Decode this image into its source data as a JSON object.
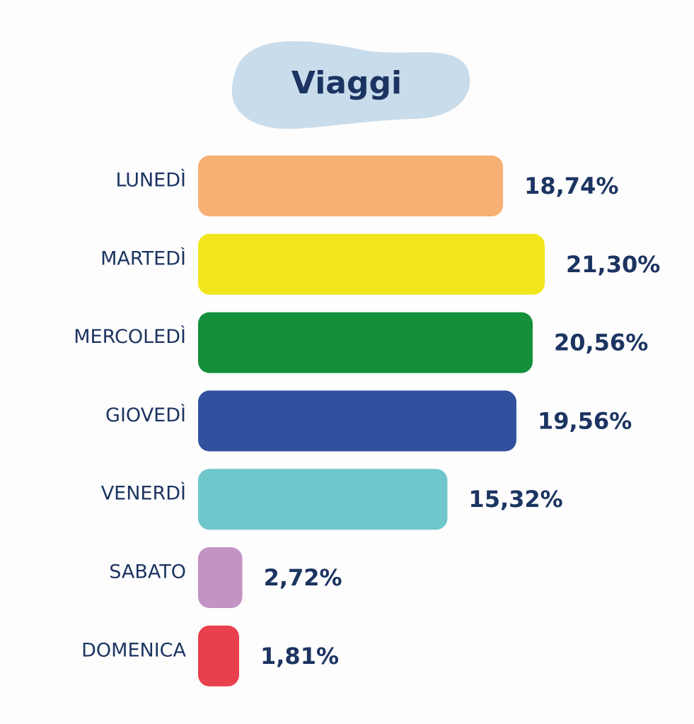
{
  "chart_data": {
    "type": "bar",
    "orientation": "horizontal",
    "title": "Viaggi",
    "categories": [
      "LUNEDÌ",
      "MARTEDÌ",
      "MERCOLEDÌ",
      "GIOVEDÌ",
      "VENERDÌ",
      "SABATO",
      "DOMENICA"
    ],
    "values": [
      18.74,
      21.3,
      20.56,
      19.56,
      15.32,
      2.72,
      1.81
    ],
    "value_labels": [
      "18,74%",
      "21,30%",
      "20,56%",
      "19,56%",
      "15,32%",
      "2,72%",
      "1,81%"
    ],
    "colors": [
      "#f7b074",
      "#f1e61c",
      "#148f3a",
      "#31519e",
      "#6fc7cb",
      "#c393c4",
      "#e8404c"
    ]
  }
}
